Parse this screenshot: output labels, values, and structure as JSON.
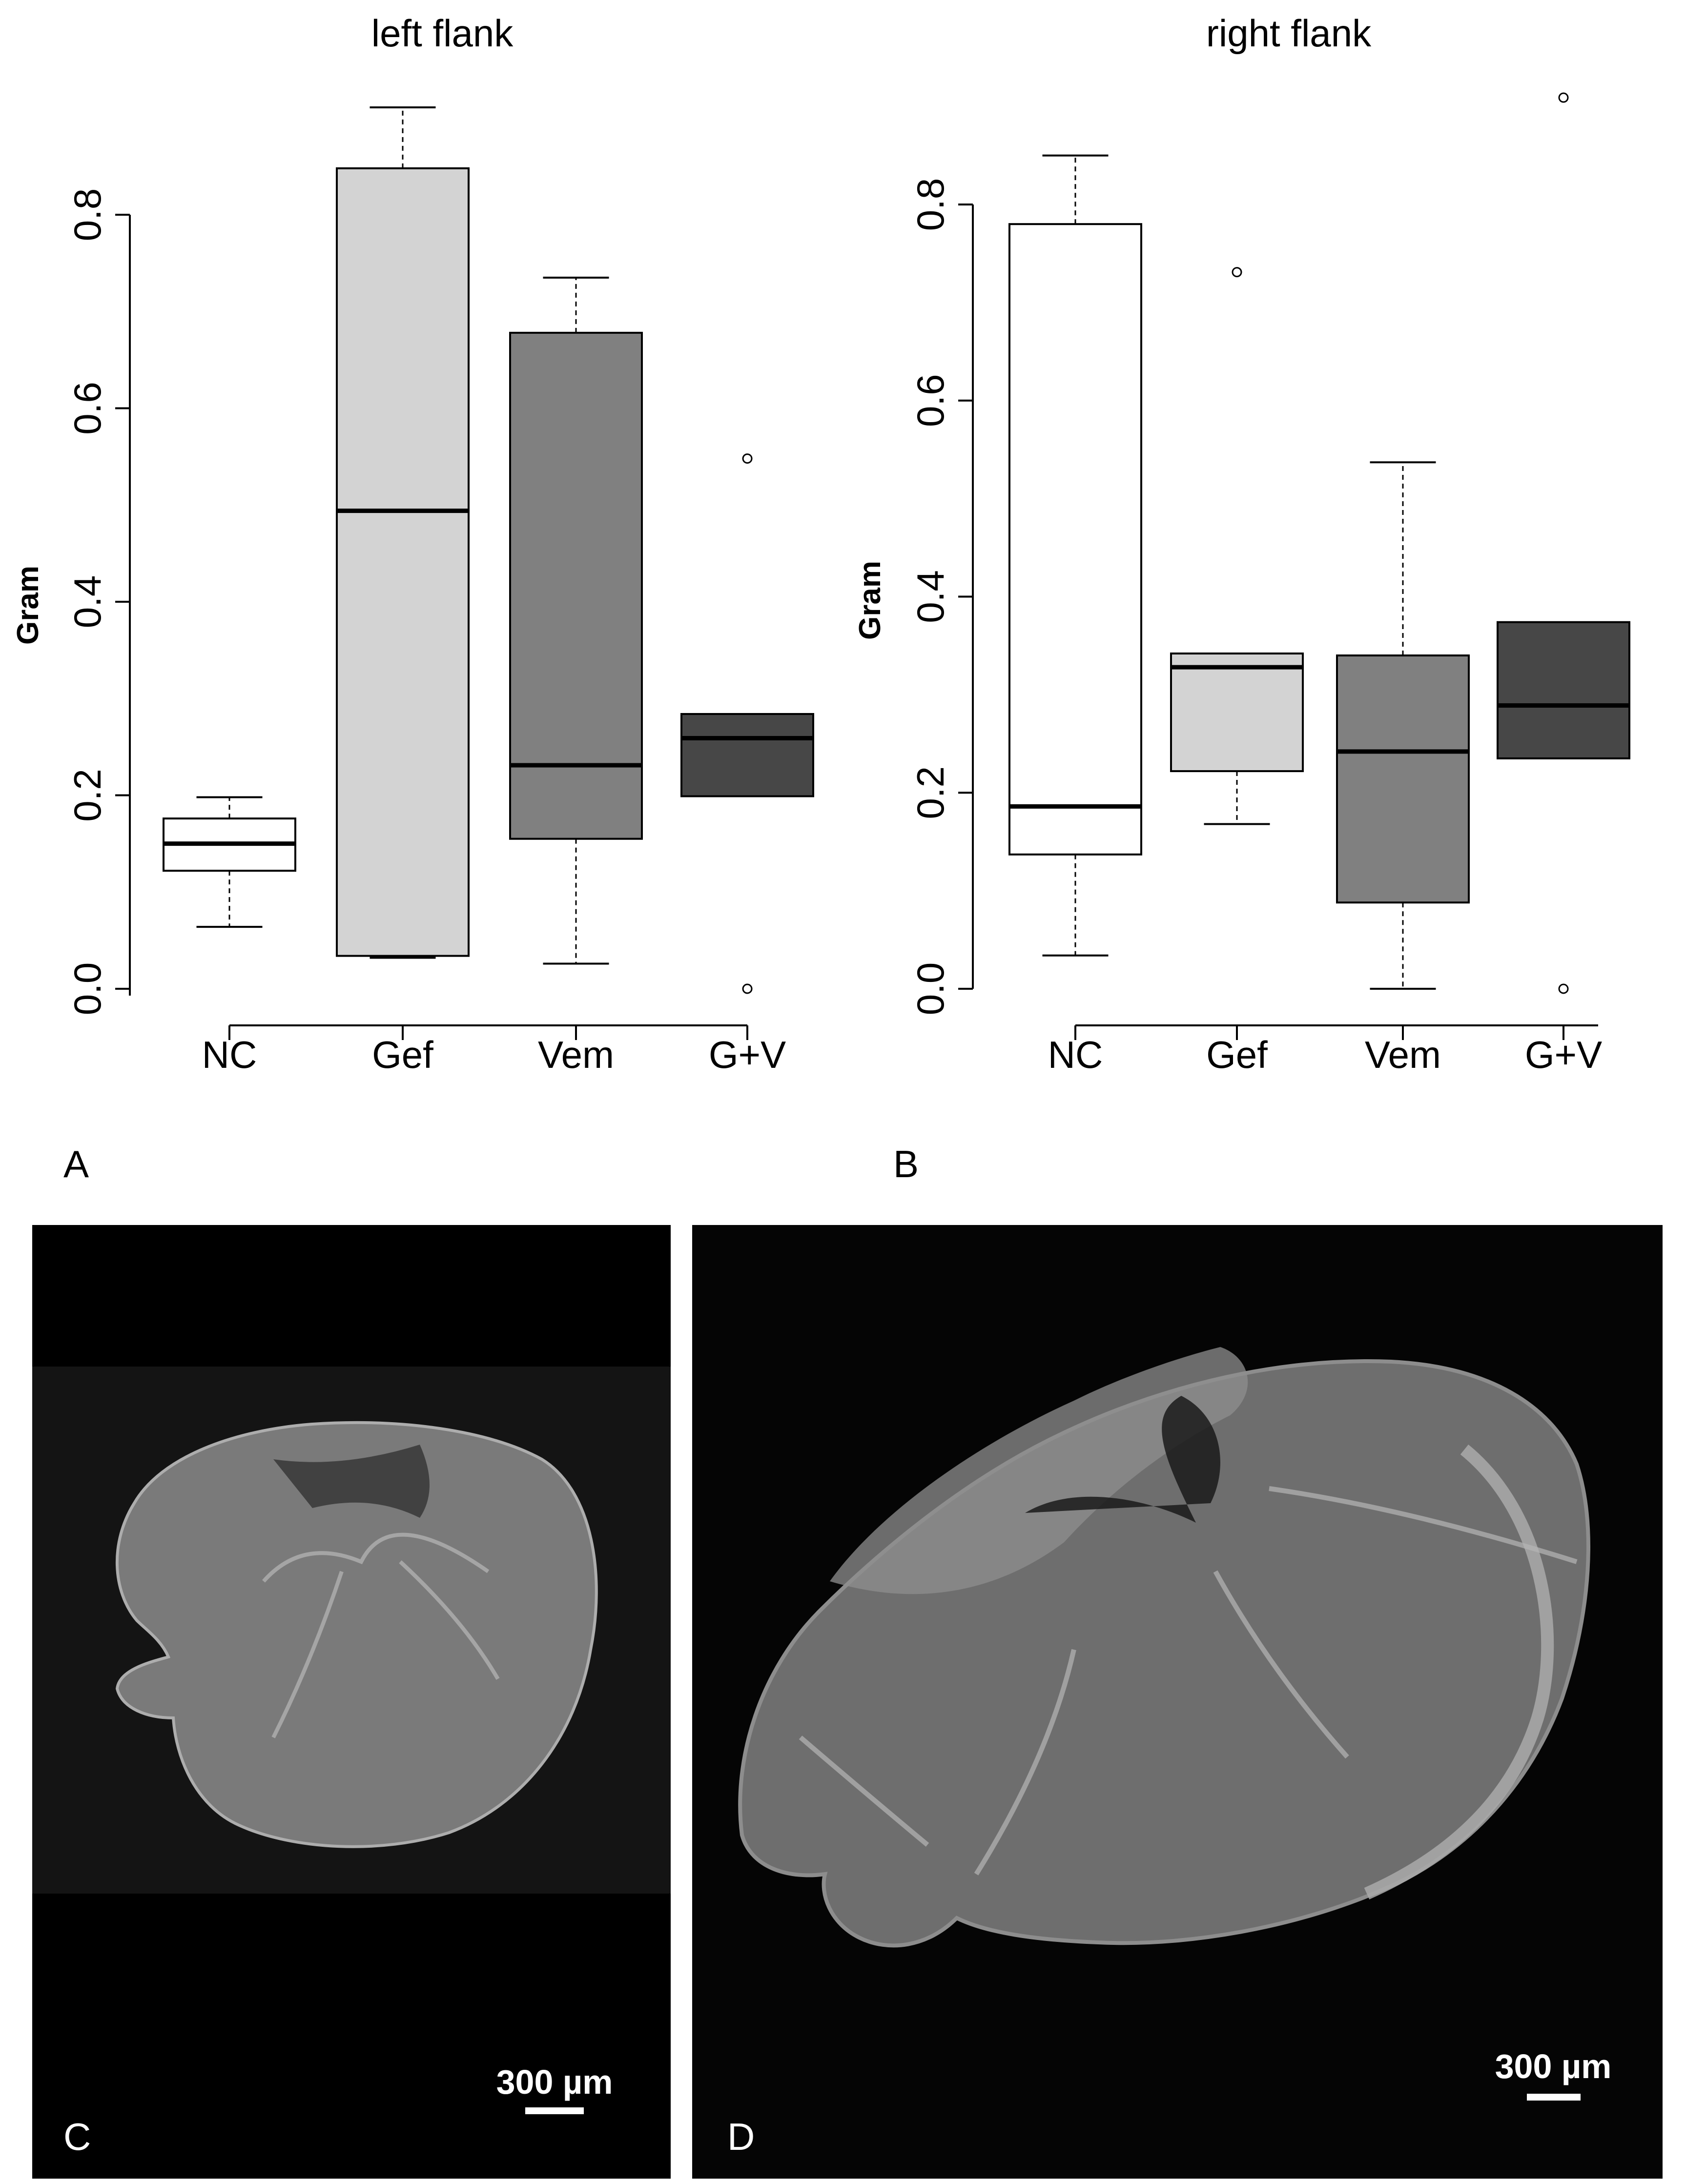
{
  "figure": {
    "panel_letters": {
      "A": "A",
      "B": "B",
      "C": "C",
      "D": "D"
    },
    "scale_bars": {
      "C": "300 µm",
      "D": "300 µm"
    }
  },
  "colors": {
    "NC": "#ffffff",
    "Gef": "#d3d3d3",
    "Vem": "#808080",
    "G+V": "#474747",
    "micrograph_background": "#000000",
    "tissue": "#bcbcbc"
  },
  "chart_data": [
    {
      "type": "boxplot",
      "panel": "A",
      "title": "left flank",
      "xlabel": "",
      "ylabel": "Gram",
      "ylim": [
        0,
        0.91
      ],
      "yticks": [
        "0.0",
        "0.2",
        "0.4",
        "0.6",
        "0.8"
      ],
      "ytick_values": [
        0,
        0.2,
        0.4,
        0.6,
        0.8
      ],
      "categories": [
        "NC",
        "Gef",
        "Vem",
        "G+V"
      ],
      "boxes": [
        {
          "category": "NC",
          "whisker_low": 0.064,
          "q1": 0.122,
          "median": 0.15,
          "q3": 0.176,
          "whisker_high": 0.198,
          "outliers": []
        },
        {
          "category": "Gef",
          "whisker_low": 0.032,
          "q1": 0.034,
          "median": 0.494,
          "q3": 0.848,
          "whisker_high": 0.911,
          "outliers": []
        },
        {
          "category": "Vem",
          "whisker_low": 0.026,
          "q1": 0.155,
          "median": 0.231,
          "q3": 0.678,
          "whisker_high": 0.735,
          "outliers": []
        },
        {
          "category": "G+V",
          "whisker_low": 0.199,
          "q1": 0.199,
          "median": 0.259,
          "q3": 0.284,
          "whisker_high": 0.284,
          "outliers": [
            0.0,
            0.548
          ]
        }
      ]
    },
    {
      "type": "boxplot",
      "panel": "B",
      "title": "right flank",
      "xlabel": "",
      "ylabel": "Gram",
      "ylim": [
        0,
        0.91
      ],
      "yticks": [
        "0.0",
        "0.2",
        "0.4",
        "0.6",
        "0.8"
      ],
      "ytick_values": [
        0,
        0.2,
        0.4,
        0.6,
        0.8
      ],
      "categories": [
        "NC",
        "Gef",
        "Vem",
        "G+V"
      ],
      "boxes": [
        {
          "category": "NC",
          "whisker_low": 0.034,
          "q1": 0.137,
          "median": 0.186,
          "q3": 0.78,
          "whisker_high": 0.85,
          "outliers": []
        },
        {
          "category": "Gef",
          "whisker_low": 0.168,
          "q1": 0.222,
          "median": 0.328,
          "q3": 0.342,
          "whisker_high": 0.342,
          "outliers": [
            0.731
          ]
        },
        {
          "category": "Vem",
          "whisker_low": 0.0,
          "q1": 0.088,
          "median": 0.242,
          "q3": 0.34,
          "whisker_high": 0.537,
          "outliers": []
        },
        {
          "category": "G+V",
          "whisker_low": 0.235,
          "q1": 0.235,
          "median": 0.289,
          "q3": 0.374,
          "whisker_high": 0.374,
          "outliers": [
            0.0,
            0.909
          ]
        }
      ]
    }
  ]
}
